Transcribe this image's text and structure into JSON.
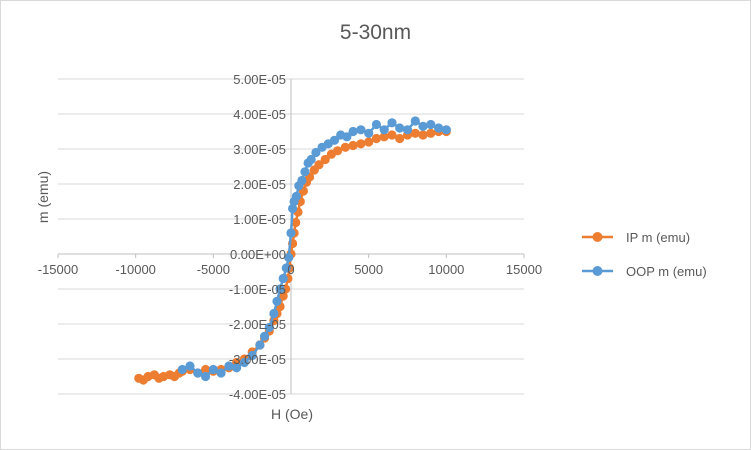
{
  "chart_data": {
    "type": "scatter",
    "title": "5-30nm",
    "xlabel": "H (Oe)",
    "ylabel": "m (emu)",
    "xlim": [
      -15000,
      15000
    ],
    "ylim": [
      -4e-05,
      5e-05
    ],
    "x_ticks": [
      "-15000",
      "-10000",
      "-5000",
      "0",
      "5000",
      "10000",
      "15000"
    ],
    "y_ticks": [
      "5.00E-05",
      "4.00E-05",
      "3.00E-05",
      "2.00E-05",
      "1.00E-05",
      "0.00E+00",
      "-1.00E-05",
      "-2.00E-05",
      "-3.00E-05",
      "-4.00E-05"
    ],
    "grid": "horizontal",
    "legend_position": "right",
    "series": [
      {
        "name": "IP m (emu)",
        "color": "#ED7D31",
        "x": [
          -9800,
          -9500,
          -9200,
          -8800,
          -8500,
          -8200,
          -7800,
          -7500,
          -7200,
          -7000,
          -6500,
          -6000,
          -5500,
          -5000,
          -4500,
          -4000,
          -3500,
          -3000,
          -2500,
          -2000,
          -1700,
          -1400,
          -1100,
          -900,
          -700,
          -500,
          -350,
          -200,
          -100,
          0,
          100,
          200,
          300,
          450,
          600,
          800,
          1000,
          1200,
          1500,
          1800,
          2200,
          2600,
          3000,
          3500,
          4000,
          4500,
          5000,
          5500,
          6000,
          6500,
          7000,
          7500,
          8000,
          8500,
          9000,
          9500,
          10000
        ],
        "y": [
          -3.55e-05,
          -3.6e-05,
          -3.5e-05,
          -3.45e-05,
          -3.55e-05,
          -3.5e-05,
          -3.45e-05,
          -3.5e-05,
          -3.4e-05,
          -3.35e-05,
          -3.3e-05,
          -3.4e-05,
          -3.3e-05,
          -3.35e-05,
          -3.3e-05,
          -3.25e-05,
          -3.1e-05,
          -3e-05,
          -2.8e-05,
          -2.6e-05,
          -2.4e-05,
          -2.2e-05,
          -1.9e-05,
          -1.7e-05,
          -1.5e-05,
          -1.2e-05,
          -1e-05,
          -7e-06,
          -4e-06,
          0.0,
          3e-06,
          6e-06,
          9e-06,
          1.2e-05,
          1.5e-05,
          1.8e-05,
          2.05e-05,
          2.2e-05,
          2.4e-05,
          2.55e-05,
          2.7e-05,
          2.85e-05,
          2.95e-05,
          3.05e-05,
          3.1e-05,
          3.15e-05,
          3.2e-05,
          3.3e-05,
          3.35e-05,
          3.4e-05,
          3.3e-05,
          3.4e-05,
          3.45e-05,
          3.4e-05,
          3.45e-05,
          3.5e-05,
          3.5e-05
        ]
      },
      {
        "name": "OOP m (emu)",
        "color": "#5B9BD5",
        "x": [
          -7000,
          -6500,
          -6000,
          -5500,
          -5000,
          -4500,
          -4000,
          -3500,
          -3000,
          -2500,
          -2000,
          -1700,
          -1400,
          -1100,
          -900,
          -700,
          -500,
          -300,
          -150,
          0,
          100,
          200,
          350,
          500,
          700,
          900,
          1100,
          1300,
          1600,
          2000,
          2400,
          2800,
          3200,
          3600,
          4000,
          4500,
          5000,
          5500,
          6000,
          6500,
          7000,
          7500,
          8000,
          8500,
          9000,
          9500,
          10000
        ],
        "y": [
          -3.3e-05,
          -3.2e-05,
          -3.4e-05,
          -3.5e-05,
          -3.3e-05,
          -3.4e-05,
          -3.2e-05,
          -3.25e-05,
          -3.1e-05,
          -2.9e-05,
          -2.6e-05,
          -2.35e-05,
          -2.1e-05,
          -1.7e-05,
          -1.35e-05,
          -1e-05,
          -7e-06,
          -4e-06,
          -1e-06,
          6e-06,
          1.3e-05,
          1.5e-05,
          1.65e-05,
          1.95e-05,
          2.1e-05,
          2.35e-05,
          2.6e-05,
          2.7e-05,
          2.9e-05,
          3.05e-05,
          3.15e-05,
          3.25e-05,
          3.4e-05,
          3.35e-05,
          3.5e-05,
          3.55e-05,
          3.45e-05,
          3.7e-05,
          3.55e-05,
          3.75e-05,
          3.6e-05,
          3.55e-05,
          3.8e-05,
          3.65e-05,
          3.7e-05,
          3.6e-05,
          3.55e-05
        ]
      }
    ]
  }
}
